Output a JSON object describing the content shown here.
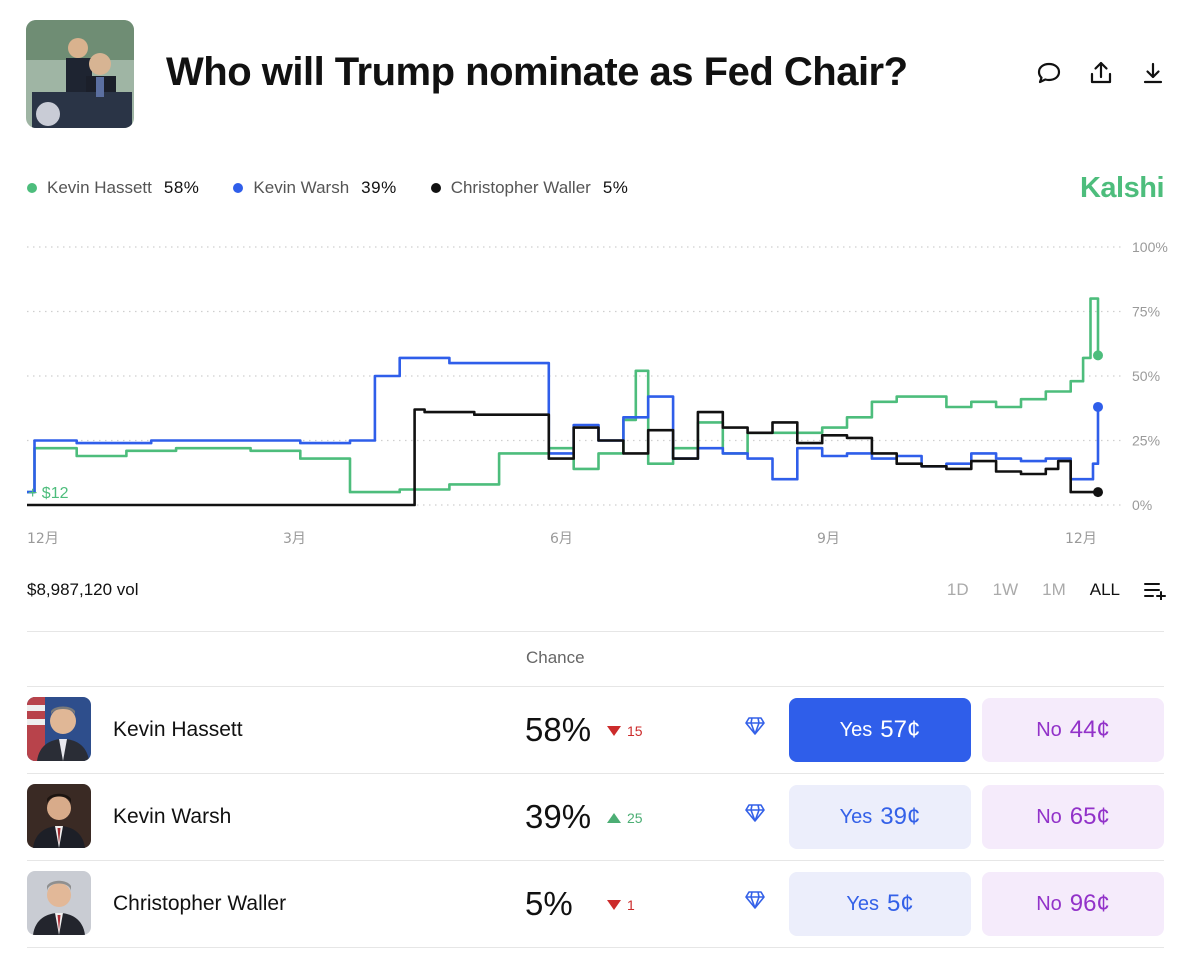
{
  "market": {
    "title": "Who will Trump nominate as Fed Chair?",
    "brand": "Kalshi"
  },
  "colors": {
    "hassett": "#4dbd7c",
    "warsh": "#2f5eea",
    "waller": "#111111",
    "brand": "#4dbd7c"
  },
  "legend": [
    {
      "name": "Kevin Hassett",
      "pct": "58%",
      "color": "#4dbd7c"
    },
    {
      "name": "Kevin Warsh",
      "pct": "39%",
      "color": "#2f5eea"
    },
    {
      "name": "Christopher Waller",
      "pct": "5%",
      "color": "#111111"
    }
  ],
  "volume": "$8,987,120 vol",
  "ranges": [
    "1D",
    "1W",
    "1M",
    "ALL"
  ],
  "active_range": "ALL",
  "table": {
    "chance_header": "Chance",
    "rows": [
      {
        "name": "Kevin Hassett",
        "pct": "58%",
        "delta": "15",
        "dir": "down",
        "yes_label": "Yes",
        "yes_price": "57¢",
        "no_label": "No",
        "no_price": "44¢"
      },
      {
        "name": "Kevin Warsh",
        "pct": "39%",
        "delta": "25",
        "dir": "up",
        "yes_label": "Yes",
        "yes_price": "39¢",
        "no_label": "No",
        "no_price": "65¢"
      },
      {
        "name": "Christopher Waller",
        "pct": "5%",
        "delta": "1",
        "dir": "down",
        "yes_label": "Yes",
        "yes_price": "5¢",
        "no_label": "No",
        "no_price": "96¢"
      }
    ]
  },
  "chart_data": {
    "type": "line",
    "x_ticks": [
      "12月",
      "3月",
      "6月",
      "9月",
      "12月"
    ],
    "y_ticks": [
      "100%",
      "75%",
      "50%",
      "25%",
      "0%"
    ],
    "ylim": [
      0,
      100
    ],
    "annotation": "+ $12",
    "grid": true,
    "series": [
      {
        "name": "Kevin Hassett",
        "color": "#4dbd7c",
        "x": [
          0,
          0.3,
          2,
          4,
          6,
          9,
          11,
          13,
          15,
          17,
          19,
          21,
          22,
          23,
          24,
          24.5,
          25,
          26,
          27,
          28,
          29,
          30,
          32,
          33,
          34,
          35,
          37,
          38,
          39,
          40,
          41,
          42,
          42.5,
          42.8,
          43.1
        ],
        "values": [
          5,
          22,
          19,
          21,
          22,
          21,
          18,
          5,
          6,
          8,
          20,
          22,
          14,
          20,
          33,
          52,
          16,
          22,
          32,
          20,
          28,
          28,
          30,
          34,
          40,
          42,
          38,
          40,
          38,
          41,
          44,
          48,
          57,
          80,
          58
        ]
      },
      {
        "name": "Kevin Warsh",
        "color": "#2f5eea",
        "x": [
          0,
          0.3,
          2,
          5,
          7,
          9,
          11,
          13,
          14,
          15,
          17,
          19,
          20,
          21,
          22,
          23,
          24,
          25,
          26,
          27,
          28,
          29,
          30,
          31,
          32,
          33,
          34,
          35,
          36,
          37,
          38,
          39,
          40,
          41,
          42,
          42.5,
          42.9,
          43.1
        ],
        "values": [
          5,
          25,
          24,
          25,
          25,
          25,
          24,
          25,
          50,
          57,
          55,
          55,
          55,
          20,
          31,
          25,
          34,
          42,
          18,
          22,
          20,
          18,
          10,
          22,
          19,
          20,
          18,
          19,
          15,
          16,
          20,
          18,
          17,
          18,
          10,
          10,
          16,
          38
        ]
      },
      {
        "name": "Christopher Waller",
        "color": "#111111",
        "x": [
          0,
          15.5,
          15.6,
          16,
          18,
          20,
          21,
          22,
          23,
          24,
          25,
          26,
          27,
          28,
          29,
          30,
          31,
          32,
          33,
          34,
          35,
          36,
          37,
          38,
          39,
          40,
          41,
          41.5,
          42,
          42.5,
          43.1
        ],
        "values": [
          0,
          0,
          37,
          36,
          35,
          35,
          18,
          30,
          25,
          20,
          29,
          18,
          36,
          30,
          28,
          32,
          24,
          27,
          26,
          20,
          16,
          15,
          14,
          17,
          13,
          12,
          14,
          17,
          5,
          5,
          5
        ]
      }
    ]
  }
}
